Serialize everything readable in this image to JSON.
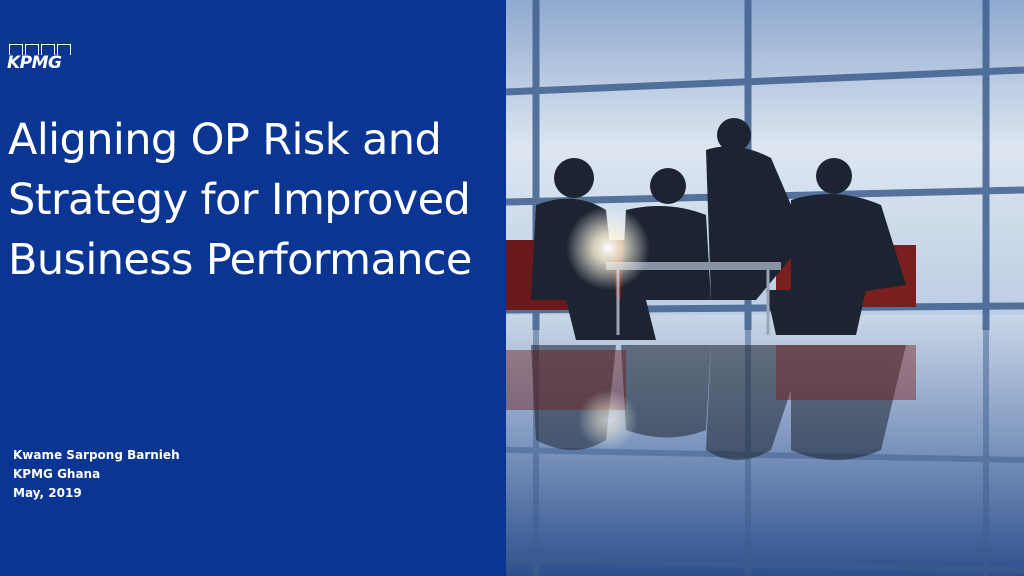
{
  "logo": {
    "text": "KPMG"
  },
  "title": {
    "lines": [
      "Aligning OP Risk and",
      "Strategy for Improved",
      "Business Performance"
    ]
  },
  "presenter": {
    "name": "Kwame Sarpong Barnieh",
    "company": "KPMG Ghana",
    "date": "May, 2019"
  },
  "colors": {
    "panel": "#0a3593",
    "text": "#ffffff"
  },
  "photo": {
    "subject": "business-meeting-silhouettes"
  }
}
